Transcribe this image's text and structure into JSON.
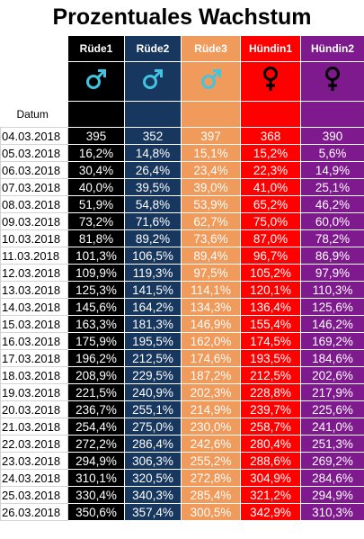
{
  "title": "Prozentuales Wachstum",
  "datum_label": "Datum",
  "columns": [
    {
      "name": "Rüde1",
      "symbol": "male-icon",
      "icon_color": "#40c4e0",
      "bg": "#000000"
    },
    {
      "name": "Rüde2",
      "symbol": "male-icon",
      "icon_color": "#40c4e0",
      "bg": "#17375e"
    },
    {
      "name": "Rüde3",
      "symbol": "male-icon",
      "icon_color": "#40c4e0",
      "bg": "#f09b5b"
    },
    {
      "name": "Hündin1",
      "symbol": "female-icon",
      "icon_color": "#000000",
      "bg": "#ff0000"
    },
    {
      "name": "Hündin2",
      "symbol": "female-icon",
      "icon_color": "#000000",
      "bg": "#7f1a8e"
    }
  ],
  "rows": [
    {
      "date": "04.03.2018",
      "values": [
        "395",
        "352",
        "397",
        "368",
        "390"
      ]
    },
    {
      "date": "05.03.2018",
      "values": [
        "16,2%",
        "14,8%",
        "15,1%",
        "15,2%",
        "5,6%"
      ]
    },
    {
      "date": "06.03.2018",
      "values": [
        "30,4%",
        "26,4%",
        "23,4%",
        "22,3%",
        "14,9%"
      ]
    },
    {
      "date": "07.03.2018",
      "values": [
        "40,0%",
        "39,5%",
        "39,0%",
        "41,0%",
        "25,1%"
      ]
    },
    {
      "date": "08.03.2018",
      "values": [
        "51,9%",
        "54,8%",
        "53,9%",
        "65,2%",
        "46,2%"
      ]
    },
    {
      "date": "09.03.2018",
      "values": [
        "73,2%",
        "71,6%",
        "62,7%",
        "75,0%",
        "60,0%"
      ]
    },
    {
      "date": "10.03.2018",
      "values": [
        "81,8%",
        "89,2%",
        "73,6%",
        "87,0%",
        "78,2%"
      ]
    },
    {
      "date": "11.03.2018",
      "values": [
        "101,3%",
        "106,5%",
        "89,4%",
        "96,7%",
        "86,9%"
      ]
    },
    {
      "date": "12.03.2018",
      "values": [
        "109,9%",
        "119,3%",
        "97,5%",
        "105,2%",
        "97,9%"
      ]
    },
    {
      "date": "13.03.2018",
      "values": [
        "125,3%",
        "141,5%",
        "114,1%",
        "120,1%",
        "110,3%"
      ]
    },
    {
      "date": "14.03.2018",
      "values": [
        "145,6%",
        "164,2%",
        "134,3%",
        "136,4%",
        "125,6%"
      ]
    },
    {
      "date": "15.03.2018",
      "values": [
        "163,3%",
        "181,3%",
        "146,9%",
        "155,4%",
        "146,2%"
      ]
    },
    {
      "date": "16.03.2018",
      "values": [
        "175,9%",
        "195,5%",
        "162,0%",
        "174,5%",
        "169,2%"
      ]
    },
    {
      "date": "17.03.2018",
      "values": [
        "196,2%",
        "212,5%",
        "174,6%",
        "193,5%",
        "184,6%"
      ]
    },
    {
      "date": "18.03.2018",
      "values": [
        "208,9%",
        "229,5%",
        "187,2%",
        "212,5%",
        "202,6%"
      ]
    },
    {
      "date": "19.03.2018",
      "values": [
        "221,5%",
        "240,9%",
        "202,3%",
        "228,8%",
        "217,9%"
      ]
    },
    {
      "date": "20.03.2018",
      "values": [
        "236,7%",
        "255,1%",
        "214,9%",
        "239,7%",
        "225,6%"
      ]
    },
    {
      "date": "21.03.2018",
      "values": [
        "254,4%",
        "275,0%",
        "230,0%",
        "258,7%",
        "241,0%"
      ]
    },
    {
      "date": "22.03.2018",
      "values": [
        "272,2%",
        "286,4%",
        "242,6%",
        "280,4%",
        "251,3%"
      ]
    },
    {
      "date": "23.03.2018",
      "values": [
        "294,9%",
        "306,3%",
        "255,2%",
        "288,6%",
        "269,2%"
      ]
    },
    {
      "date": "24.03.2018",
      "values": [
        "310,1%",
        "320,5%",
        "272,8%",
        "304,9%",
        "284,6%"
      ]
    },
    {
      "date": "25.03.2018",
      "values": [
        "330,4%",
        "340,3%",
        "285,4%",
        "321,2%",
        "294,9%"
      ]
    },
    {
      "date": "26.03.2018",
      "values": [
        "350,6%",
        "357,4%",
        "300,5%",
        "342,9%",
        "310,3%"
      ]
    }
  ]
}
